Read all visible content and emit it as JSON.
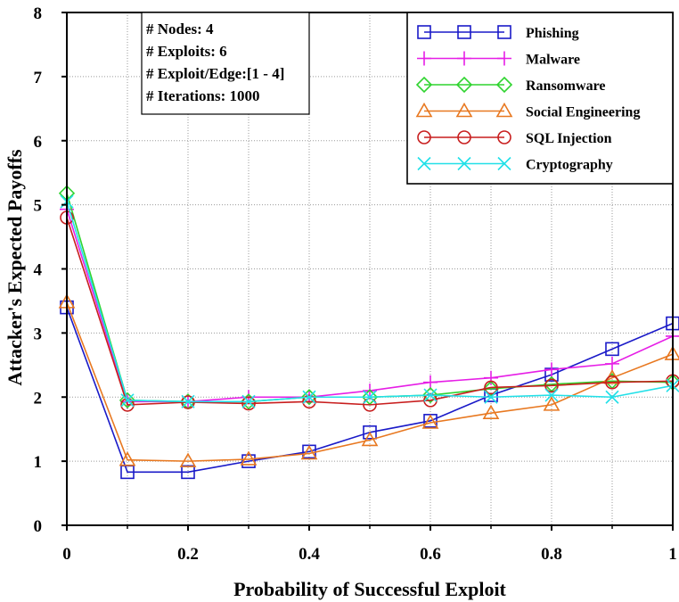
{
  "chart_data": {
    "type": "line",
    "xlabel": "Probability of Successful Exploit",
    "ylabel": "Attacker's Expected Payoffs",
    "xlim": [
      0,
      1
    ],
    "ylim": [
      0,
      8
    ],
    "x_ticks": [
      "0",
      "0.2",
      "0.4",
      "0.6",
      "0.8",
      "1"
    ],
    "y_ticks": [
      "0",
      "1",
      "2",
      "3",
      "4",
      "5",
      "6",
      "7",
      "8"
    ],
    "grid": true,
    "legend_position": "top-right",
    "info_box": [
      "# Nodes: 4",
      "# Exploits: 6",
      "# Exploit/Edge:[1 - 4]",
      "# Iterations: 1000"
    ],
    "x": [
      0,
      0.1,
      0.2,
      0.3,
      0.4,
      0.5,
      0.6,
      0.7,
      0.8,
      0.9,
      1.0
    ],
    "series": [
      {
        "name": "Phishing",
        "color": "#1a1ac8",
        "marker": "square",
        "values": [
          3.4,
          0.83,
          0.83,
          1.0,
          1.15,
          1.45,
          1.63,
          2.03,
          2.35,
          2.75,
          3.15
        ]
      },
      {
        "name": "Malware",
        "color": "#e61ee6",
        "marker": "plus",
        "values": [
          4.93,
          1.93,
          1.93,
          2.0,
          2.0,
          2.1,
          2.23,
          2.3,
          2.43,
          2.52,
          2.95
        ]
      },
      {
        "name": "Ransomware",
        "color": "#2fd42f",
        "marker": "diamond",
        "values": [
          5.18,
          1.95,
          1.93,
          1.93,
          2.0,
          2.0,
          2.03,
          2.13,
          2.2,
          2.25,
          2.23
        ]
      },
      {
        "name": "Social Engineering",
        "color": "#e87820",
        "marker": "triangle",
        "values": [
          3.48,
          1.02,
          1.0,
          1.03,
          1.12,
          1.33,
          1.6,
          1.75,
          1.88,
          2.3,
          2.67
        ]
      },
      {
        "name": "SQL Injection",
        "color": "#c81e1e",
        "marker": "circle",
        "values": [
          4.8,
          1.88,
          1.92,
          1.9,
          1.93,
          1.88,
          1.95,
          2.15,
          2.18,
          2.23,
          2.25
        ]
      },
      {
        "name": "Cryptography",
        "color": "#22e0e8",
        "marker": "x",
        "values": [
          5.05,
          1.95,
          1.93,
          1.93,
          2.0,
          2.0,
          2.03,
          2.0,
          2.03,
          2.0,
          2.18
        ]
      }
    ]
  }
}
